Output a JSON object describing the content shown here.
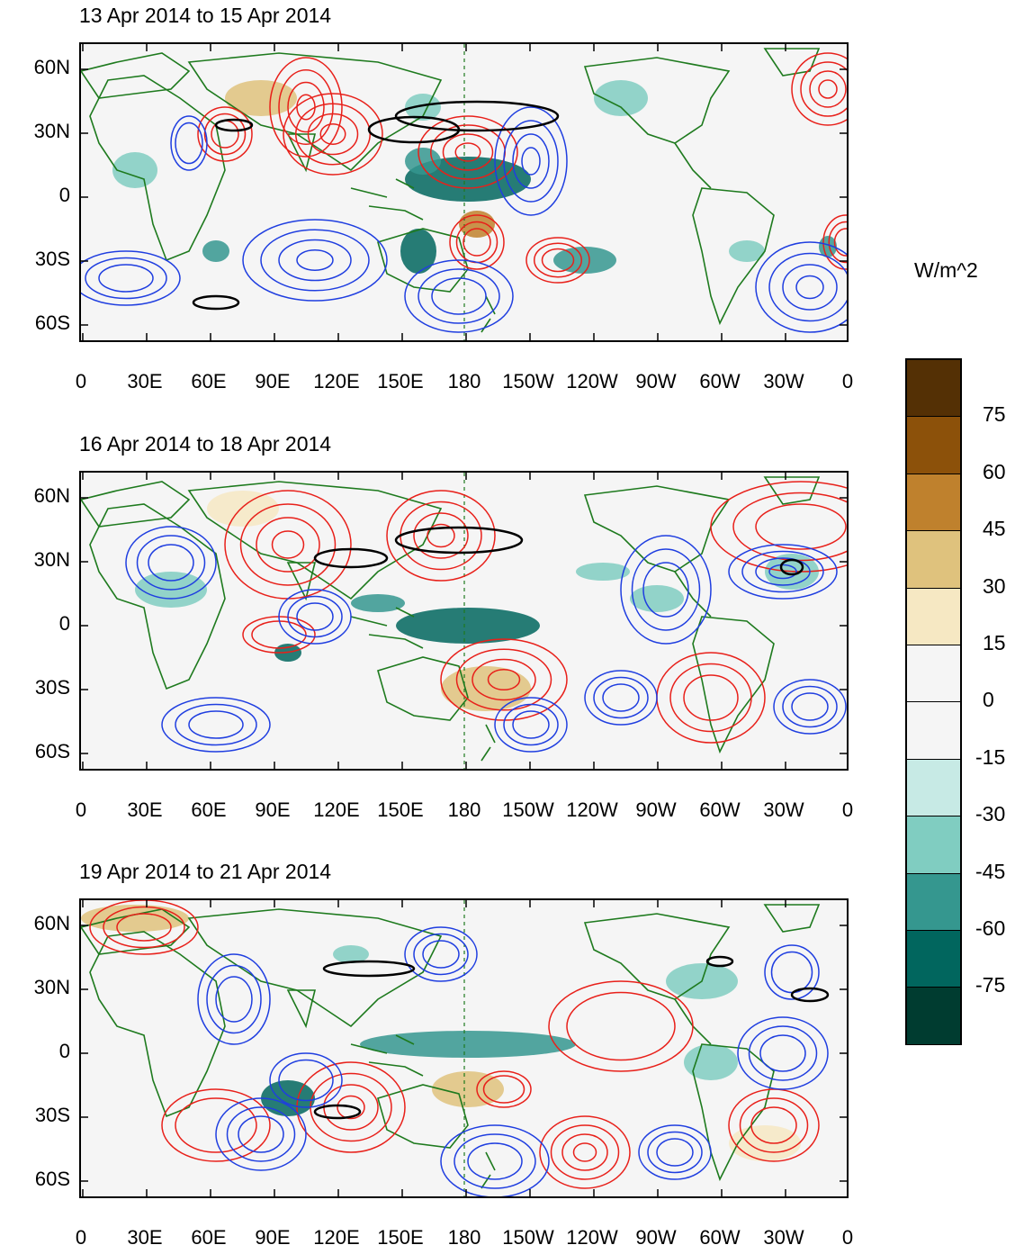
{
  "panels": [
    {
      "title": "13 Apr 2014 to 15 Apr 2014"
    },
    {
      "title": "16 Apr 2014 to 18 Apr 2014"
    },
    {
      "title": "19 Apr 2014 to 21 Apr 2014"
    }
  ],
  "lat_labels": [
    "60N",
    "30N",
    "0",
    "30S",
    "60S"
  ],
  "lon_labels": [
    "0",
    "30E",
    "60E",
    "90E",
    "120E",
    "150E",
    "180",
    "150W",
    "120W",
    "90W",
    "60W",
    "30W",
    "0"
  ],
  "colorbar": {
    "units": "W/m^2",
    "labels": [
      "75",
      "60",
      "45",
      "30",
      "15",
      "0",
      "-15",
      "-30",
      "-45",
      "-60",
      "-75"
    ],
    "colors": [
      "#543005",
      "#8c510a",
      "#bf812d",
      "#dfc27d",
      "#f6e8c3",
      "#f5f5f5",
      "#f5f5f5",
      "#c7eae5",
      "#80cdc1",
      "#35978f",
      "#01665e",
      "#003c30"
    ]
  },
  "colors": {
    "positive_contour": "#e8201a",
    "negative_contour": "#1f3ee0",
    "coastline": "#1e7a1e",
    "sig_contour": "#000000"
  }
}
